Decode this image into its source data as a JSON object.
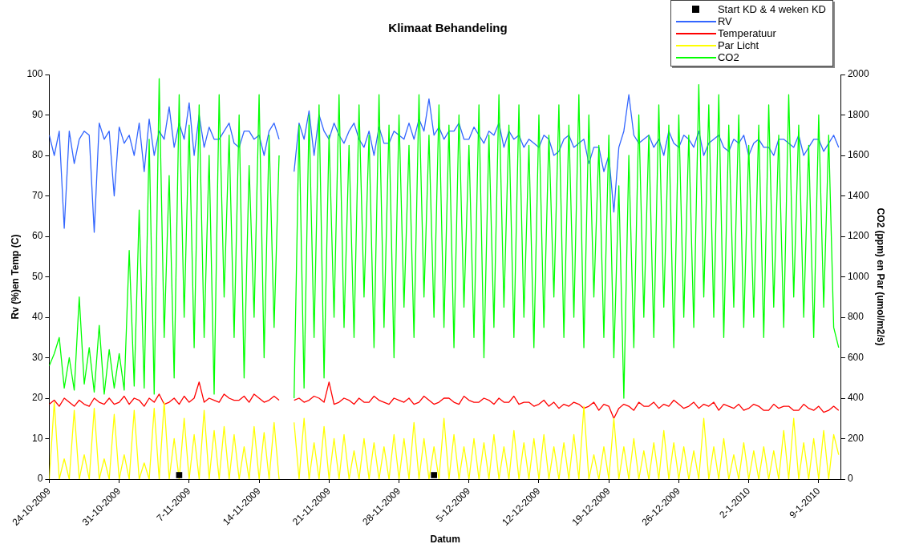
{
  "chart_data": {
    "type": "line",
    "title": "Klimaat Behandeling",
    "xlabel": "Datum",
    "ylabel": "Rv (%)en Temp (C)",
    "y2label": "CO2 (ppm) en Par (umol/m2/s)",
    "xlim": [
      "2009-10-24",
      "2010-01-11T06:00"
    ],
    "xticks": [
      {
        "value": "2009-10-24",
        "label": "24-10-2009"
      },
      {
        "value": "2009-10-31",
        "label": "31-10-2009"
      },
      {
        "value": "2009-11-07",
        "label": "7-11-2009"
      },
      {
        "value": "2009-11-14",
        "label": "14-11-2009"
      },
      {
        "value": "2009-11-21",
        "label": "21-11-2009"
      },
      {
        "value": "2009-11-28",
        "label": "28-11-2009"
      },
      {
        "value": "2009-12-05",
        "label": "5-12-2009"
      },
      {
        "value": "2009-12-12",
        "label": "12-12-2009"
      },
      {
        "value": "2009-12-19",
        "label": "19-12-2009"
      },
      {
        "value": "2009-12-26",
        "label": "26-12-2009"
      },
      {
        "value": "2010-01-02",
        "label": "2-1-2010"
      },
      {
        "value": "2010-01-09",
        "label": "9-1-2010"
      }
    ],
    "ylim": [
      0,
      100
    ],
    "yticks": [
      0,
      10,
      20,
      30,
      40,
      50,
      60,
      70,
      80,
      90,
      100
    ],
    "y2lim": [
      0,
      2000
    ],
    "y2ticks": [
      0,
      200,
      400,
      600,
      800,
      1000,
      1200,
      1400,
      1600,
      1800,
      2000
    ],
    "grid": false,
    "legend": "top right",
    "marker": "none",
    "line_style": "solid",
    "x": [
      "2009-10-24T00:00",
      "2009-10-24T12:00",
      "2009-10-25T00:00",
      "2009-10-25T12:00",
      "2009-10-26T00:00",
      "2009-10-26T12:00",
      "2009-10-27T00:00",
      "2009-10-27T12:00",
      "2009-10-28T00:00",
      "2009-10-28T12:00",
      "2009-10-29T00:00",
      "2009-10-29T12:00",
      "2009-10-30T00:00",
      "2009-10-30T12:00",
      "2009-10-31T00:00",
      "2009-10-31T12:00",
      "2009-11-01T00:00",
      "2009-11-01T12:00",
      "2009-11-02T00:00",
      "2009-11-02T12:00",
      "2009-11-03T00:00",
      "2009-11-03T12:00",
      "2009-11-04T00:00",
      "2009-11-04T12:00",
      "2009-11-05T00:00",
      "2009-11-05T12:00",
      "2009-11-06T00:00",
      "2009-11-06T12:00",
      "2009-11-07T00:00",
      "2009-11-07T12:00",
      "2009-11-08T00:00",
      "2009-11-08T12:00",
      "2009-11-09T00:00",
      "2009-11-09T12:00",
      "2009-11-10T00:00",
      "2009-11-10T12:00",
      "2009-11-11T00:00",
      "2009-11-11T12:00",
      "2009-11-12T00:00",
      "2009-11-12T12:00",
      "2009-11-13T00:00",
      "2009-11-13T12:00",
      "2009-11-14T00:00",
      "2009-11-14T12:00",
      "2009-11-15T00:00",
      "2009-11-15T12:00",
      "2009-11-16T00:00",
      "2009-11-16T12:00",
      "2009-11-17T00:00",
      "2009-11-17T12:00",
      "2009-11-18T00:00",
      "2009-11-18T12:00",
      "2009-11-19T00:00",
      "2009-11-19T12:00",
      "2009-11-20T00:00",
      "2009-11-20T12:00",
      "2009-11-21T00:00",
      "2009-11-21T12:00",
      "2009-11-22T00:00",
      "2009-11-22T12:00",
      "2009-11-23T00:00",
      "2009-11-23T12:00",
      "2009-11-24T00:00",
      "2009-11-24T12:00",
      "2009-11-25T00:00",
      "2009-11-25T12:00",
      "2009-11-26T00:00",
      "2009-11-26T12:00",
      "2009-11-27T00:00",
      "2009-11-27T12:00",
      "2009-11-28T00:00",
      "2009-11-28T12:00",
      "2009-11-29T00:00",
      "2009-11-29T12:00",
      "2009-11-30T00:00",
      "2009-11-30T12:00",
      "2009-12-01T00:00",
      "2009-12-01T12:00",
      "2009-12-02T00:00",
      "2009-12-02T12:00",
      "2009-12-03T00:00",
      "2009-12-03T12:00",
      "2009-12-04T00:00",
      "2009-12-04T12:00",
      "2009-12-05T00:00",
      "2009-12-05T12:00",
      "2009-12-06T00:00",
      "2009-12-06T12:00",
      "2009-12-07T00:00",
      "2009-12-07T12:00",
      "2009-12-08T00:00",
      "2009-12-08T12:00",
      "2009-12-09T00:00",
      "2009-12-09T12:00",
      "2009-12-10T00:00",
      "2009-12-10T12:00",
      "2009-12-11T00:00",
      "2009-12-11T12:00",
      "2009-12-12T00:00",
      "2009-12-12T12:00",
      "2009-12-13T00:00",
      "2009-12-13T12:00",
      "2009-12-14T00:00",
      "2009-12-14T12:00",
      "2009-12-15T00:00",
      "2009-12-15T12:00",
      "2009-12-16T00:00",
      "2009-12-16T12:00",
      "2009-12-17T00:00",
      "2009-12-17T12:00",
      "2009-12-18T00:00",
      "2009-12-18T12:00",
      "2009-12-19T00:00",
      "2009-12-19T12:00",
      "2009-12-20T00:00",
      "2009-12-20T12:00",
      "2009-12-21T00:00",
      "2009-12-21T12:00",
      "2009-12-22T00:00",
      "2009-12-22T12:00",
      "2009-12-23T00:00",
      "2009-12-23T12:00",
      "2009-12-24T00:00",
      "2009-12-24T12:00",
      "2009-12-25T00:00",
      "2009-12-25T12:00",
      "2009-12-26T00:00",
      "2009-12-26T12:00",
      "2009-12-27T00:00",
      "2009-12-27T12:00",
      "2009-12-28T00:00",
      "2009-12-28T12:00",
      "2009-12-29T00:00",
      "2009-12-29T12:00",
      "2009-12-30T00:00",
      "2009-12-30T12:00",
      "2009-12-31T00:00",
      "2009-12-31T12:00",
      "2010-01-01T00:00",
      "2010-01-01T12:00",
      "2010-01-02T00:00",
      "2010-01-02T12:00",
      "2010-01-03T00:00",
      "2010-01-03T12:00",
      "2010-01-04T00:00",
      "2010-01-04T12:00",
      "2010-01-05T00:00",
      "2010-01-05T12:00",
      "2010-01-06T00:00",
      "2010-01-06T12:00",
      "2010-01-07T00:00",
      "2010-01-07T12:00",
      "2010-01-08T00:00",
      "2010-01-08T12:00",
      "2010-01-09T00:00",
      "2010-01-09T12:00",
      "2010-01-10T00:00",
      "2010-01-10T12:00",
      "2010-01-11T00:00"
    ],
    "series": [
      {
        "name": "Start KD & 4 weken KD",
        "type": "scatter",
        "marker": "square",
        "color": "#000000",
        "x": [
          "2009-11-06T00:00",
          "2009-12-01T12:00"
        ],
        "values": [
          1,
          1
        ]
      },
      {
        "name": "RV",
        "color": "#3366ff",
        "values": [
          85,
          80,
          86,
          62,
          86,
          78,
          84,
          86,
          85,
          61,
          88,
          84,
          86,
          70,
          87,
          83,
          85,
          80,
          88,
          76,
          89,
          80,
          86,
          84,
          92,
          82,
          88,
          84,
          93,
          80,
          90,
          82,
          87,
          84,
          84,
          86,
          88,
          83,
          82,
          86,
          86,
          84,
          85,
          80,
          86,
          88,
          84,
          null,
          null,
          76,
          88,
          84,
          91,
          80,
          90,
          86,
          84,
          88,
          85,
          83,
          86,
          88,
          84,
          82,
          86,
          80,
          87,
          83,
          83,
          86,
          85,
          84,
          88,
          84,
          89,
          86,
          94,
          85,
          87,
          84,
          86,
          86,
          88,
          84,
          84,
          87,
          85,
          83,
          86,
          85,
          88,
          82,
          86,
          84,
          85,
          82,
          84,
          83,
          82,
          85,
          84,
          80,
          81,
          84,
          85,
          82,
          83,
          84,
          78,
          82,
          82,
          76,
          80,
          66,
          82,
          86,
          95,
          85,
          83,
          84,
          85,
          82,
          84,
          80,
          86,
          83,
          82,
          85,
          84,
          82,
          86,
          80,
          83,
          84,
          85,
          82,
          81,
          84,
          83,
          85,
          80,
          83,
          84,
          82,
          82,
          80,
          84,
          84,
          83,
          82,
          85,
          80,
          82,
          84,
          84,
          81,
          83,
          85,
          82
        ]
      },
      {
        "name": "Temperatuur",
        "color": "#ff0000",
        "values": [
          18.5,
          19.5,
          18,
          20,
          19,
          18,
          19.5,
          18.5,
          18,
          20,
          19,
          18.5,
          20,
          18.5,
          19,
          20.5,
          18.5,
          20,
          19.5,
          18,
          20,
          19,
          21,
          18.5,
          19,
          20,
          18.5,
          20.5,
          19,
          20,
          24,
          19,
          20,
          19.5,
          19,
          21,
          20,
          19.5,
          19.5,
          20.5,
          19,
          21,
          20,
          19,
          19.5,
          20.5,
          19.5,
          null,
          null,
          19.5,
          20,
          19,
          19.5,
          20.5,
          20,
          19,
          24,
          18.5,
          19,
          20,
          19.5,
          18.5,
          20,
          19,
          19,
          20.5,
          19.5,
          19,
          18.5,
          20,
          19.5,
          19,
          20,
          18.5,
          19,
          20.5,
          19.5,
          18.5,
          19,
          20,
          20,
          19,
          18.5,
          20.5,
          19.5,
          19,
          19,
          20,
          19.5,
          18.5,
          20,
          19,
          19,
          20.5,
          18.5,
          19,
          19,
          18,
          18.5,
          19.5,
          18,
          19,
          17.5,
          18.5,
          18,
          19,
          18.5,
          17.5,
          18,
          19,
          17,
          18.5,
          18,
          15,
          17.5,
          18.5,
          18,
          17,
          19,
          18,
          18,
          19,
          17.5,
          18.5,
          18,
          19.5,
          18.5,
          17.5,
          18,
          19,
          17.5,
          18.5,
          18,
          19,
          17,
          18.5,
          18,
          17.5,
          18.5,
          17,
          17.5,
          18.5,
          18,
          17,
          17,
          18.5,
          17.5,
          18,
          18,
          17,
          17,
          18.5,
          17.5,
          17,
          18,
          16.5,
          17,
          18,
          17
        ]
      },
      {
        "name": "Par Licht",
        "color": "#ffff00",
        "axis": "y2",
        "values": [
          0,
          380,
          0,
          100,
          0,
          340,
          0,
          120,
          0,
          350,
          0,
          100,
          0,
          320,
          0,
          120,
          0,
          340,
          0,
          80,
          0,
          350,
          0,
          380,
          0,
          200,
          0,
          300,
          0,
          220,
          0,
          340,
          0,
          240,
          0,
          260,
          0,
          220,
          0,
          160,
          0,
          260,
          0,
          230,
          0,
          280,
          0,
          null,
          null,
          280,
          0,
          300,
          0,
          180,
          0,
          260,
          0,
          200,
          0,
          220,
          0,
          140,
          0,
          200,
          0,
          180,
          0,
          160,
          0,
          220,
          0,
          200,
          0,
          280,
          0,
          200,
          0,
          160,
          0,
          300,
          0,
          220,
          0,
          160,
          0,
          200,
          0,
          180,
          0,
          220,
          0,
          160,
          0,
          240,
          0,
          180,
          0,
          200,
          0,
          220,
          0,
          160,
          0,
          180,
          0,
          220,
          0,
          360,
          0,
          120,
          0,
          160,
          0,
          300,
          0,
          160,
          0,
          200,
          0,
          140,
          0,
          180,
          0,
          240,
          0,
          180,
          0,
          160,
          0,
          140,
          0,
          300,
          0,
          160,
          0,
          200,
          0,
          120,
          0,
          180,
          0,
          140,
          0,
          160,
          0,
          140,
          0,
          240,
          0,
          300,
          0,
          180,
          0,
          200,
          0,
          240,
          0,
          220,
          120
        ]
      },
      {
        "name": "CO2",
        "color": "#00ff00",
        "axis": "y2",
        "values": [
          560,
          620,
          700,
          450,
          600,
          440,
          900,
          470,
          650,
          430,
          760,
          420,
          640,
          450,
          620,
          440,
          1130,
          460,
          1330,
          450,
          1680,
          420,
          1980,
          700,
          1500,
          500,
          1900,
          800,
          1750,
          650,
          1850,
          700,
          1600,
          420,
          1900,
          900,
          1700,
          700,
          1800,
          500,
          1550,
          800,
          1900,
          600,
          1700,
          750,
          1600,
          null,
          null,
          400,
          1750,
          450,
          1800,
          700,
          1850,
          500,
          1700,
          800,
          1900,
          750,
          1650,
          700,
          1850,
          900,
          1700,
          650,
          1900,
          750,
          1750,
          600,
          1800,
          850,
          1650,
          700,
          1900,
          900,
          1700,
          800,
          1850,
          750,
          1750,
          650,
          1800,
          850,
          1650,
          700,
          1850,
          600,
          1700,
          750,
          1900,
          850,
          1750,
          700,
          1850,
          800,
          1650,
          650,
          1800,
          750,
          1700,
          900,
          1850,
          700,
          1750,
          800,
          1900,
          650,
          1800,
          900,
          1650,
          700,
          1700,
          600,
          1450,
          400,
          1600,
          650,
          1800,
          800,
          1700,
          700,
          1850,
          850,
          1750,
          650,
          1800,
          800,
          1700,
          750,
          1950,
          900,
          1850,
          800,
          1900,
          700,
          1750,
          850,
          1800,
          750,
          1650,
          800,
          1750,
          700,
          1850,
          850,
          1700,
          750,
          1900,
          900,
          1750,
          800,
          1650,
          700,
          1800,
          850,
          1700,
          750,
          650
        ]
      }
    ]
  }
}
